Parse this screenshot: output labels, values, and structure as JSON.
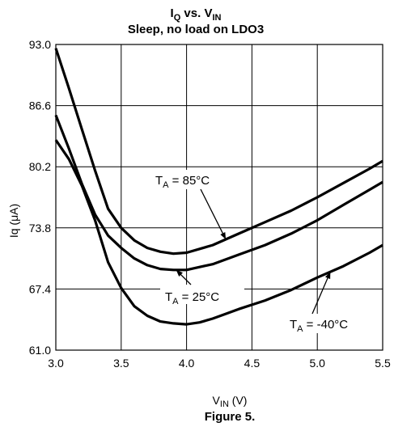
{
  "figure": {
    "title_line1": {
      "main": "I",
      "sub1": "Q",
      "mid": " vs. V",
      "sub2": "IN"
    },
    "title_line2": "Sleep, no load on LDO3",
    "caption": "Figure 5."
  },
  "chart_data": {
    "type": "line",
    "xlabel": {
      "main": "V",
      "sub": "IN",
      "rest": " (V)"
    },
    "ylabel": "Iq (μA)",
    "xlim": [
      3.0,
      5.5
    ],
    "ylim": [
      61.0,
      93.0
    ],
    "x_ticks": [
      "3.0",
      "3.5",
      "4.0",
      "4.5",
      "5.0",
      "5.5"
    ],
    "y_ticks": [
      "61.0",
      "67.4",
      "73.8",
      "80.2",
      "86.6",
      "93.0"
    ],
    "grid": true,
    "series": [
      {
        "name": "85°C",
        "x": [
          3.0,
          3.1,
          3.2,
          3.3,
          3.4,
          3.5,
          3.6,
          3.7,
          3.8,
          3.9,
          4.0,
          4.1,
          4.2,
          4.4,
          4.6,
          4.8,
          5.0,
          5.2,
          5.4,
          5.5
        ],
        "y": [
          92.6,
          88.4,
          84.1,
          79.8,
          75.8,
          73.8,
          72.5,
          71.7,
          71.3,
          71.1,
          71.2,
          71.6,
          72.0,
          73.2,
          74.4,
          75.6,
          77.0,
          78.5,
          80.0,
          80.8
        ]
      },
      {
        "name": "25°C",
        "x": [
          3.0,
          3.1,
          3.2,
          3.3,
          3.4,
          3.5,
          3.6,
          3.7,
          3.8,
          3.9,
          4.0,
          4.1,
          4.2,
          4.4,
          4.6,
          4.8,
          5.0,
          5.2,
          5.4,
          5.5
        ],
        "y": [
          85.6,
          82.1,
          78.4,
          75.2,
          73.0,
          71.7,
          70.6,
          69.9,
          69.5,
          69.4,
          69.4,
          69.7,
          70.0,
          71.0,
          72.0,
          73.2,
          74.6,
          76.2,
          77.8,
          78.6
        ]
      },
      {
        "name": "-40°C",
        "x": [
          3.0,
          3.1,
          3.2,
          3.3,
          3.4,
          3.5,
          3.6,
          3.7,
          3.8,
          3.9,
          4.0,
          4.1,
          4.2,
          4.3,
          4.4,
          4.6,
          4.8,
          5.0,
          5.2,
          5.4,
          5.5
        ],
        "y": [
          83.0,
          81.0,
          78.2,
          74.6,
          70.2,
          67.5,
          65.6,
          64.6,
          64.0,
          63.8,
          63.7,
          63.9,
          64.3,
          64.8,
          65.3,
          66.2,
          67.3,
          68.6,
          69.8,
          71.2,
          72.0
        ]
      }
    ],
    "annotations": [
      {
        "prefix": "T",
        "sub": "A",
        "text": " = 85°C",
        "series": "85°C",
        "point": [
          4.3,
          72.6
        ]
      },
      {
        "prefix": "T",
        "sub": "A",
        "text": " = 25°C",
        "series": "25°C",
        "point": [
          3.92,
          69.4
        ]
      },
      {
        "prefix": "T",
        "sub": "A",
        "text": " = -40°C",
        "series": "-40°C",
        "point": [
          5.1,
          69.2
        ]
      }
    ]
  }
}
